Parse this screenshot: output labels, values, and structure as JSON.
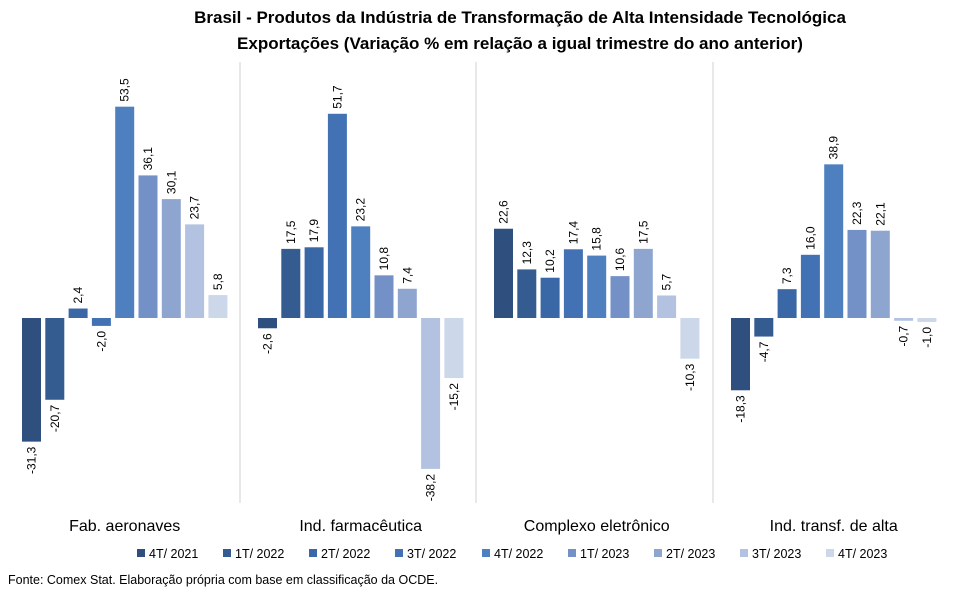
{
  "chart_data": {
    "type": "bar",
    "title": "Brasil - Produtos da Indústria de Transformação de Alta Intensidade Tecnológica",
    "subtitle": "Exportações (Variação % em relação a igual trimestre do ano anterior)",
    "categories": [
      "Fab. aeronaves",
      "Ind. farmacêutica",
      "Complexo eletrônico",
      "Ind. transf. de alta"
    ],
    "series": [
      {
        "name": "4T/ 2021",
        "color": "#2f4f7f",
        "values": [
          -31.3,
          -2.6,
          22.6,
          -18.3
        ],
        "labels": [
          "-31,3",
          "-2,6",
          "22,6",
          "-18,3"
        ]
      },
      {
        "name": "1T/ 2022",
        "color": "#345c91",
        "values": [
          -20.7,
          17.5,
          12.3,
          -4.7
        ],
        "labels": [
          "-20,7",
          "17,5",
          "12,3",
          "-4,7"
        ]
      },
      {
        "name": "2T/ 2022",
        "color": "#3a68a6",
        "values": [
          2.4,
          17.9,
          10.2,
          7.3
        ],
        "labels": [
          "2,4",
          "17,9",
          "10,2",
          "7,3"
        ]
      },
      {
        "name": "3T/ 2022",
        "color": "#4272b4",
        "values": [
          -2.0,
          51.7,
          17.4,
          16.0
        ],
        "labels": [
          "-2,0",
          "51,7",
          "17,4",
          "16,0"
        ]
      },
      {
        "name": "4T/ 2022",
        "color": "#4e80c0",
        "values": [
          53.5,
          23.2,
          15.8,
          38.9
        ],
        "labels": [
          "53,5",
          "23,2",
          "15,8",
          "38,9"
        ]
      },
      {
        "name": "1T/ 2023",
        "color": "#7391c6",
        "values": [
          36.1,
          10.8,
          10.6,
          22.3
        ],
        "labels": [
          "36,1",
          "10,8",
          "10,6",
          "22,3"
        ]
      },
      {
        "name": "2T/ 2023",
        "color": "#8ea5d0",
        "values": [
          30.1,
          7.4,
          17.5,
          22.1
        ],
        "labels": [
          "30,1",
          "7,4",
          "17,5",
          "22,1"
        ]
      },
      {
        "name": "3T/ 2023",
        "color": "#b2c2e0",
        "values": [
          23.7,
          -38.2,
          5.7,
          -0.7
        ],
        "labels": [
          "23,7",
          "-38,2",
          "5,7",
          "-0,7"
        ]
      },
      {
        "name": "4T/ 2023",
        "color": "#cdd7ea",
        "values": [
          5.8,
          -15.2,
          -10.3,
          -1.0
        ],
        "labels": [
          "5,8",
          "-15,2",
          "-10,3",
          "-1,0"
        ]
      }
    ],
    "ylim": [
      -40,
      55
    ],
    "grid": false,
    "legend": "bottom"
  },
  "source": "Fonte: Comex Stat. Elaboração própria com base em classificação da OCDE."
}
